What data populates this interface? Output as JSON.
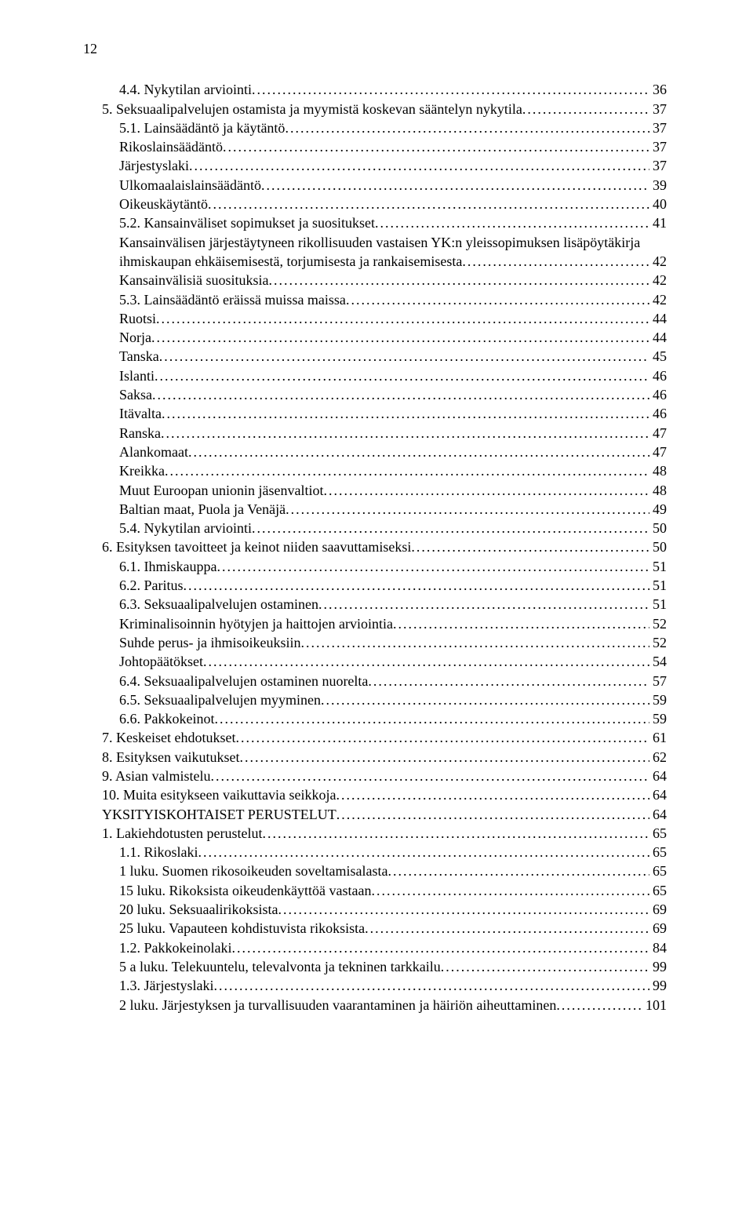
{
  "page_number": "12",
  "toc": [
    {
      "label": "4.4. Nykytilan arviointi",
      "page": "36",
      "indent": 1
    },
    {
      "label": "5. Seksuaalipalvelujen ostamista ja myymistä koskevan sääntelyn nykytila",
      "page": "37",
      "indent": 0
    },
    {
      "label": "5.1. Lainsäädäntö ja käytäntö",
      "page": "37",
      "indent": 1
    },
    {
      "label": "Rikoslainsäädäntö",
      "page": "37",
      "indent": 1
    },
    {
      "label": "Järjestyslaki",
      "page": "37",
      "indent": 1
    },
    {
      "label": "Ulkomaalaislainsäädäntö",
      "page": "39",
      "indent": 1
    },
    {
      "label": "Oikeuskäytäntö",
      "page": "40",
      "indent": 1
    },
    {
      "label": "5.2. Kansainväliset sopimukset ja suositukset",
      "page": "41",
      "indent": 1
    },
    {
      "label": "Kansainvälisen järjestäytyneen rikollisuuden vastaisen YK:n yleissopimuksen lisäpöytäkirja",
      "page": "42",
      "indent": 1,
      "nowrap_break": true
    },
    {
      "label": "ihmiskaupan ehkäisemisestä, torjumisesta ja rankaisemisesta",
      "page": "42",
      "indent": 1
    },
    {
      "label": "Kansainvälisiä suosituksia",
      "page": "42",
      "indent": 1
    },
    {
      "label": "5.3. Lainsäädäntö eräissä muissa maissa",
      "page": "42",
      "indent": 1
    },
    {
      "label": "Ruotsi",
      "page": "44",
      "indent": 1
    },
    {
      "label": "Norja",
      "page": "44",
      "indent": 1
    },
    {
      "label": "Tanska",
      "page": "45",
      "indent": 1
    },
    {
      "label": "Islanti",
      "page": "46",
      "indent": 1
    },
    {
      "label": "Saksa",
      "page": "46",
      "indent": 1
    },
    {
      "label": "Itävalta",
      "page": "46",
      "indent": 1
    },
    {
      "label": "Ranska",
      "page": "47",
      "indent": 1
    },
    {
      "label": "Alankomaat",
      "page": "47",
      "indent": 1
    },
    {
      "label": "Kreikka",
      "page": "48",
      "indent": 1
    },
    {
      "label": "Muut Euroopan unionin jäsenvaltiot",
      "page": "48",
      "indent": 1
    },
    {
      "label": "Baltian maat, Puola ja Venäjä",
      "page": "49",
      "indent": 1
    },
    {
      "label": "5.4. Nykytilan arviointi",
      "page": "50",
      "indent": 1
    },
    {
      "label": "6. Esityksen tavoitteet ja keinot niiden saavuttamiseksi",
      "page": "50",
      "indent": 0
    },
    {
      "label": "6.1. Ihmiskauppa",
      "page": "51",
      "indent": 1
    },
    {
      "label": "6.2. Paritus",
      "page": "51",
      "indent": 1
    },
    {
      "label": "6.3. Seksuaalipalvelujen ostaminen",
      "page": "51",
      "indent": 1
    },
    {
      "label": "Kriminalisoinnin hyötyjen ja haittojen arviointia",
      "page": "52",
      "indent": 1
    },
    {
      "label": "Suhde perus- ja ihmisoikeuksiin",
      "page": "52",
      "indent": 1
    },
    {
      "label": "Johtopäätökset",
      "page": "54",
      "indent": 1
    },
    {
      "label": "6.4. Seksuaalipalvelujen ostaminen nuorelta",
      "page": "57",
      "indent": 1
    },
    {
      "label": "6.5. Seksuaalipalvelujen myyminen",
      "page": "59",
      "indent": 1
    },
    {
      "label": "6.6. Pakkokeinot",
      "page": "59",
      "indent": 1
    },
    {
      "label": "7. Keskeiset ehdotukset",
      "page": "61",
      "indent": 0
    },
    {
      "label": "8. Esityksen vaikutukset",
      "page": "62",
      "indent": 0
    },
    {
      "label": "9. Asian valmistelu",
      "page": "64",
      "indent": 0
    },
    {
      "label": "10. Muita esitykseen vaikuttavia seikkoja",
      "page": "64",
      "indent": 0
    },
    {
      "label": "YKSITYISKOHTAISET PERUSTELUT",
      "page": "64",
      "indent": 0
    },
    {
      "label": "1. Lakiehdotusten perustelut",
      "page": "65",
      "indent": 0
    },
    {
      "label": "1.1. Rikoslaki",
      "page": "65",
      "indent": 1
    },
    {
      "label": "1 luku. Suomen rikosoikeuden soveltamisalasta",
      "page": "65",
      "indent": 1
    },
    {
      "label": "15 luku. Rikoksista oikeudenkäyttöä vastaan",
      "page": "65",
      "indent": 1
    },
    {
      "label": "20 luku. Seksuaalirikoksista",
      "page": "69",
      "indent": 1
    },
    {
      "label": "25 luku. Vapauteen kohdistuvista rikoksista",
      "page": "69",
      "indent": 1
    },
    {
      "label": "1.2. Pakkokeinolaki",
      "page": "84",
      "indent": 1
    },
    {
      "label": "5 a luku. Telekuuntelu, televalvonta ja tekninen tarkkailu",
      "page": "99",
      "indent": 1
    },
    {
      "label": "1.3. Järjestyslaki",
      "page": "99",
      "indent": 1
    },
    {
      "label": "2 luku. Järjestyksen ja turvallisuuden vaarantaminen ja häiriön aiheuttaminen",
      "page": "101",
      "indent": 1
    }
  ]
}
